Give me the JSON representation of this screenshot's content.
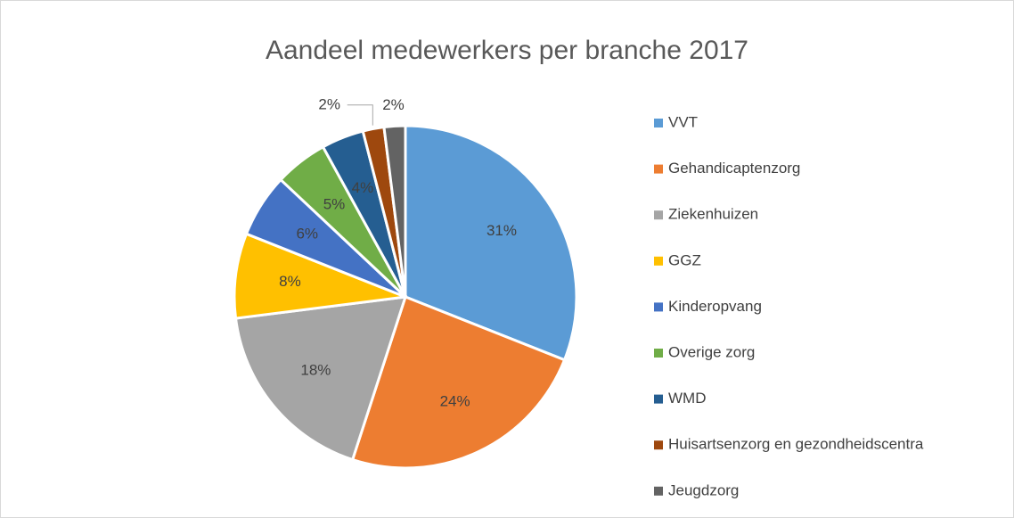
{
  "chart_data": {
    "type": "pie",
    "title": "Aandeel medewerkers per branche 2017",
    "categories": [
      "VVT",
      "Gehandicaptenzorg",
      "Ziekenhuizen",
      "GGZ",
      "Kinderopvang",
      "Overige zorg",
      "WMD",
      "Huisartsenzorg en gezondheidscentra",
      "Jeugdzorg"
    ],
    "values": [
      31,
      24,
      18,
      8,
      6,
      5,
      4,
      2,
      2
    ],
    "value_labels": [
      "31%",
      "24%",
      "18%",
      "8%",
      "6%",
      "5%",
      "4%",
      "2%",
      "2%"
    ],
    "colors": [
      "#5b9bd5",
      "#ed7d31",
      "#a5a5a5",
      "#ffc000",
      "#4472c4",
      "#70ad47",
      "#255e91",
      "#9e480e",
      "#636363"
    ],
    "legend": "right"
  }
}
